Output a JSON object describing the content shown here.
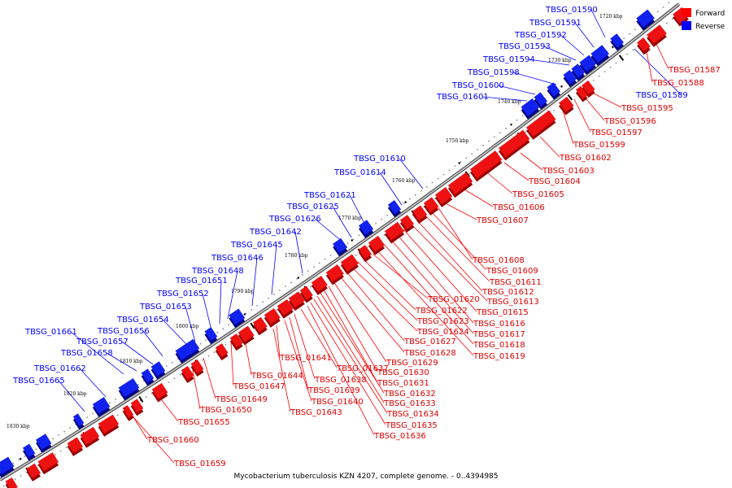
{
  "caption": "Mycobacterium tuberculosis KZN 4207, complete genome. - 0..4394985",
  "legend": {
    "forward": "Forward",
    "reverse": "Reverse",
    "forward_color": "#ff0000",
    "reverse_color": "#0000ff"
  },
  "ticks": [
    "1720 kbp",
    "1730 kbp",
    "1740 kbp",
    "1750 kbp",
    "1760 kbp",
    "1770 kbp",
    "1780 kbp",
    "1790 kbp",
    "1800 kbp",
    "1810 kbp",
    "1820 kbp",
    "1830 kbp"
  ],
  "reverse_genes": [
    "TBSG_01590",
    "TBSG_01591",
    "TBSG_01592",
    "TBSG_01593",
    "TBSG_01594",
    "TBSG_01598",
    "TBSG_01600",
    "TBSG_01601",
    "TBSG_01610",
    "TBSG_01614",
    "TBSG_01621",
    "TBSG_01625",
    "TBSG_01626",
    "TBSG_01642",
    "TBSG_01645",
    "TBSG_01646",
    "TBSG_01648",
    "TBSG_01651",
    "TBSG_01652",
    "TBSG_01653",
    "TBSG_01654",
    "TBSG_01656",
    "TBSG_01657",
    "TBSG_01661",
    "TBSG_01658",
    "TBSG_01662",
    "TBSG_01665",
    "TBSG_01589"
  ],
  "forward_genes": [
    "TBSG_01587",
    "TBSG_01588",
    "TBSG_01595",
    "TBSG_01596",
    "TBSG_01597",
    "TBSG_01599",
    "TBSG_01602",
    "TBSG_01603",
    "TBSG_01604",
    "TBSG_01605",
    "TBSG_01606",
    "TBSG_01607",
    "TBSG_01608",
    "TBSG_01609",
    "TBSG_01611",
    "TBSG_01612",
    "TBSG_01613",
    "TBSG_01615",
    "TBSG_01616",
    "TBSG_01617",
    "TBSG_01618",
    "TBSG_01619",
    "TBSG_01620",
    "TBSG_01622",
    "TBSG_01623",
    "TBSG_01624",
    "TBSG_01627",
    "TBSG_01628",
    "TBSG_01629",
    "TBSG_01630",
    "TBSG_01631",
    "TBSG_01632",
    "TBSG_01633",
    "TBSG_01634",
    "TBSG_01635",
    "TBSG_01636",
    "TBSG_01637",
    "TBSG_01638",
    "TBSG_01639",
    "TBSG_01640",
    "TBSG_01641",
    "TBSG_01643",
    "TBSG_01644",
    "TBSG_01647",
    "TBSG_01649",
    "TBSG_01650",
    "TBSG_01655",
    "TBSG_01659",
    "TBSG_01660"
  ]
}
